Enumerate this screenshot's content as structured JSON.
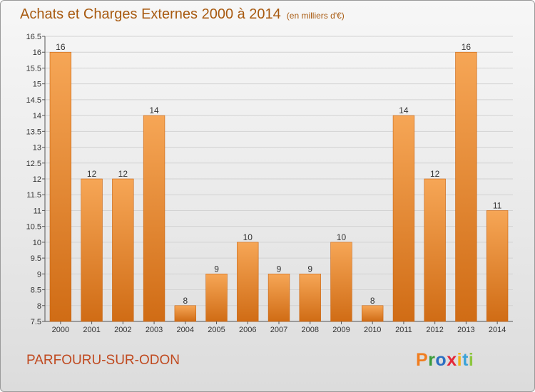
{
  "title": "Achats et Charges Externes 2000 à 2014",
  "unit": "(en milliers d'€)",
  "place": "PARFOURU-SUR-ODON",
  "brand": "Proxiti",
  "brand_colors": [
    "#f07d1f",
    "#3a9b3a",
    "#2b6fc2",
    "#e4283a",
    "#f2b315",
    "#3aa2d8",
    "#8dc63f"
  ],
  "colors": {
    "bar": "#e8832a",
    "bar_light": "#f6a656",
    "bar_dark": "#d06c15",
    "text": "#a85a10",
    "place": "#c04a20"
  },
  "chart_data": {
    "type": "bar",
    "categories": [
      "2000",
      "2001",
      "2002",
      "2003",
      "2004",
      "2005",
      "2006",
      "2007",
      "2008",
      "2009",
      "2010",
      "2011",
      "2012",
      "2013",
      "2014"
    ],
    "values": [
      16,
      12,
      12,
      14,
      8,
      9,
      10,
      9,
      9,
      10,
      8,
      14,
      12,
      16,
      11
    ],
    "data_labels": [
      "16",
      "12",
      "12",
      "14",
      "8",
      "9",
      "10",
      "9",
      "9",
      "10",
      "8",
      "14",
      "12",
      "16",
      "11"
    ],
    "ylim": [
      7.5,
      16.5
    ],
    "yticks": [
      "7.5",
      "8",
      "8.5",
      "9",
      "9.5",
      "10",
      "10.5",
      "11",
      "11.5",
      "12",
      "12.5",
      "13",
      "13.5",
      "14",
      "14.5",
      "15",
      "15.5",
      "16",
      "16.5"
    ],
    "grid": true,
    "title": "Achats et Charges Externes 2000 à 2014",
    "xlabel": "",
    "ylabel": ""
  }
}
